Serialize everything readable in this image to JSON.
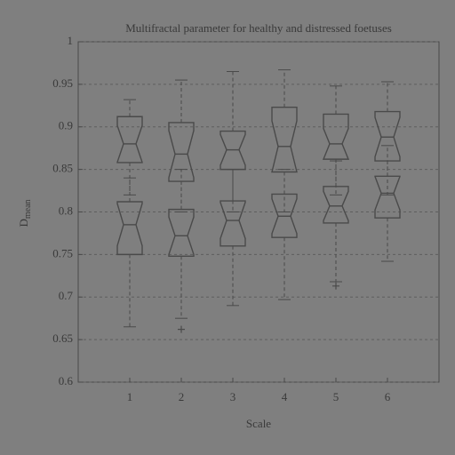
{
  "chart_data": {
    "type": "box",
    "title": "Multifractal parameter for healthy and distressed foetuses",
    "xlabel": "Scale",
    "ylabel": "D",
    "ylabel_subscript": "mean",
    "x": [
      1,
      2,
      3,
      4,
      5,
      6
    ],
    "xlim": [
      0,
      7
    ],
    "xticks": [
      1,
      2,
      3,
      4,
      5,
      6
    ],
    "ylim": [
      0.6,
      1
    ],
    "yticks": [
      0.6,
      0.65,
      0.7,
      0.75,
      0.8,
      0.85,
      0.9,
      0.95,
      1
    ],
    "grid": true,
    "color": "#4a4a4a",
    "groups": [
      {
        "whisker_low": [
          0.82,
          0.8,
          0.8,
          0.8,
          0.82,
          0.82
        ],
        "q1": [
          0.858,
          0.836,
          0.85,
          0.847,
          0.862,
          0.86
        ],
        "median": [
          0.88,
          0.868,
          0.873,
          0.877,
          0.88,
          0.888
        ],
        "q3": [
          0.912,
          0.905,
          0.895,
          0.923,
          0.915,
          0.918
        ],
        "whisker_high": [
          0.932,
          0.955,
          0.965,
          0.967,
          0.948,
          0.953
        ],
        "outliers": [
          [],
          [],
          [],
          [],
          [],
          []
        ]
      },
      {
        "whisker_low": [
          0.665,
          0.675,
          0.69,
          0.697,
          0.718,
          0.742
        ],
        "q1": [
          0.75,
          0.748,
          0.76,
          0.77,
          0.787,
          0.793
        ],
        "median": [
          0.785,
          0.772,
          0.79,
          0.795,
          0.807,
          0.822
        ],
        "q3": [
          0.812,
          0.803,
          0.813,
          0.821,
          0.83,
          0.842
        ],
        "whisker_high": [
          0.84,
          0.85,
          0.85,
          0.85,
          0.86,
          0.878
        ],
        "outliers": [
          [],
          [
            0.662
          ],
          [],
          [],
          [
            0.713
          ],
          []
        ]
      }
    ]
  }
}
